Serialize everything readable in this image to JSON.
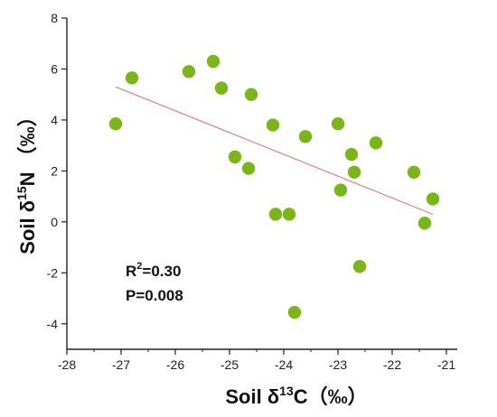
{
  "chart_data": {
    "type": "scatter",
    "xlabel": {
      "prefix": "Soil δ",
      "sup": "13",
      "suffix": "C（‰）"
    },
    "ylabel": {
      "prefix": "Soil δ",
      "sup": "15",
      "suffix": "N （‰）"
    },
    "xlim": [
      -28,
      -20.8
    ],
    "ylim": [
      -5,
      8
    ],
    "xticks": [
      -28,
      -27,
      -26,
      -25,
      -24,
      -23,
      -22,
      -21
    ],
    "xtick_labels": [
      "-28",
      "-27",
      "-26",
      "-25",
      "-24",
      "-23",
      "-22",
      "-21"
    ],
    "yticks": [
      -4,
      -2,
      0,
      2,
      4,
      6,
      8
    ],
    "ytick_labels": [
      "-4",
      "-2",
      "0",
      "2",
      "4",
      "6",
      "8"
    ],
    "grid": false,
    "point_color": "#7cb51a",
    "line_color": "#d98080",
    "points": [
      {
        "x": -27.1,
        "y": 3.85
      },
      {
        "x": -26.8,
        "y": 5.65
      },
      {
        "x": -25.75,
        "y": 5.9
      },
      {
        "x": -25.3,
        "y": 6.3
      },
      {
        "x": -25.15,
        "y": 5.25
      },
      {
        "x": -24.9,
        "y": 2.55
      },
      {
        "x": -24.65,
        "y": 2.1
      },
      {
        "x": -24.6,
        "y": 5.0
      },
      {
        "x": -24.2,
        "y": 3.8
      },
      {
        "x": -24.15,
        "y": 0.3
      },
      {
        "x": -23.9,
        "y": 0.3
      },
      {
        "x": -23.8,
        "y": -3.55
      },
      {
        "x": -23.6,
        "y": 3.35
      },
      {
        "x": -23.0,
        "y": 3.85
      },
      {
        "x": -22.95,
        "y": 1.25
      },
      {
        "x": -22.75,
        "y": 2.65
      },
      {
        "x": -22.7,
        "y": 1.95
      },
      {
        "x": -22.6,
        "y": -1.75
      },
      {
        "x": -22.3,
        "y": 3.1
      },
      {
        "x": -21.6,
        "y": 1.95
      },
      {
        "x": -21.4,
        "y": -0.05
      },
      {
        "x": -21.25,
        "y": 0.9
      }
    ],
    "trendline": {
      "x": [
        -27.1,
        -21.25
      ],
      "y": [
        5.3,
        0.3
      ]
    },
    "annotations": {
      "r2": {
        "prefix": "R",
        "sup": "2",
        "suffix": "=0.30"
      },
      "p": "P=0.008"
    }
  }
}
